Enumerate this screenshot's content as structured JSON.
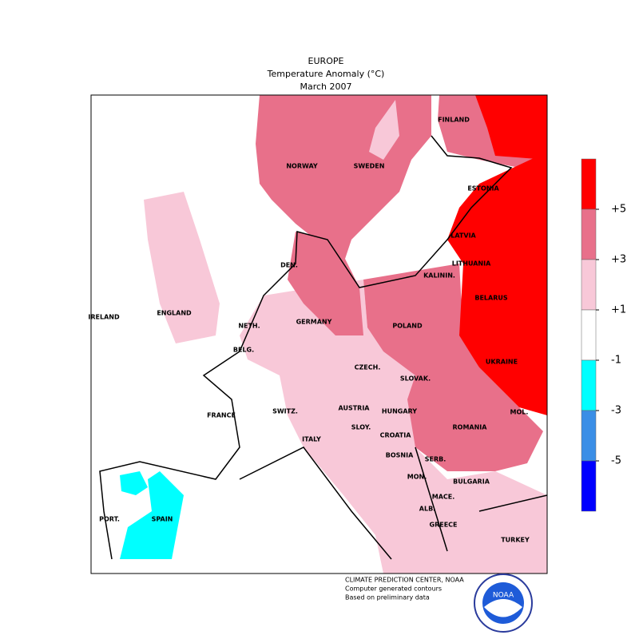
{
  "header": {
    "title": "EUROPE",
    "subtitle": "Temperature Anomaly (°C)",
    "period": "March 2007"
  },
  "legend": {
    "ticks": [
      {
        "value": 5,
        "label": "+5"
      },
      {
        "value": 3,
        "label": "+3"
      },
      {
        "value": 1,
        "label": "+1"
      },
      {
        "value": -1,
        "label": "-1"
      },
      {
        "value": -3,
        "label": "-3"
      },
      {
        "value": -5,
        "label": "-5"
      }
    ],
    "colors": [
      "#ff0000",
      "#e8708a",
      "#f8c8d8",
      "#ffffff",
      "#00ffff",
      "#3a8ee6",
      "#0000ff"
    ]
  },
  "map": {
    "labels": [
      "FINLAND",
      "NORWAY",
      "SWEDEN",
      "ESTONIA",
      "LATVIA",
      "DEN.",
      "KALININ.",
      "LITHUANIA",
      "BELARUS",
      "IRELAND",
      "ENGLAND",
      "NETH.",
      "GERMANY",
      "POLAND",
      "BELG.",
      "UKRAINE",
      "CZECH.",
      "SLOVAK.",
      "FRANCE",
      "SWITZ.",
      "AUSTRIA",
      "HUNGARY",
      "MOL.",
      "ROMANIA",
      "SLOY.",
      "CROATIA",
      "ITALY",
      "BOSNIA",
      "SERB.",
      "BULGARIA",
      "MON.",
      "MACE.",
      "ALB.",
      "PORT.",
      "SPAIN",
      "GREECE",
      "TURKEY"
    ]
  },
  "footer": {
    "lines": [
      "CLIMATE PREDICTION CENTER, NOAA",
      "Computer generated contours",
      "Based on preliminary data"
    ]
  },
  "logo": {
    "text": "NOAA"
  }
}
